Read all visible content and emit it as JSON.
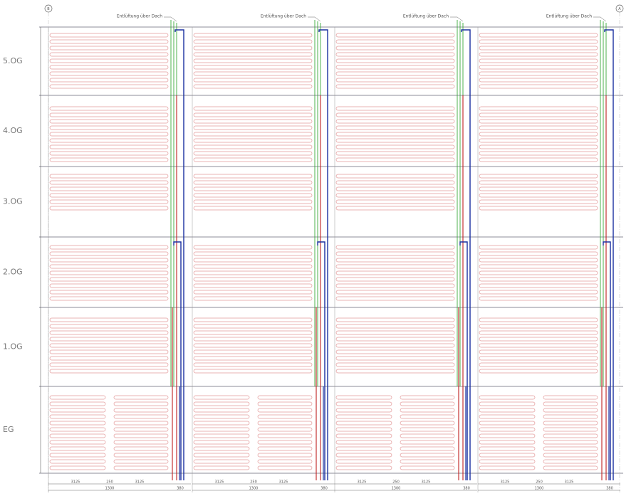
{
  "grid_markers": [
    "B",
    "A"
  ],
  "floors": [
    "5.OG",
    "4.OG",
    "3.OG",
    "2.OG",
    "1.OG",
    "EG"
  ],
  "columns": [
    {
      "vent": "Entlüftung über Dach",
      "dims": [
        "3125",
        "250",
        "3125",
        "1300",
        "380"
      ]
    },
    {
      "vent": "Entlüftung über Dach",
      "dims": [
        "3125",
        "250",
        "3125",
        "1300",
        "380"
      ]
    },
    {
      "vent": "Entlüftung über Dach",
      "dims": [
        "3125",
        "250",
        "3125",
        "1300",
        "380"
      ]
    },
    {
      "vent": "Entlüftung über Dach",
      "dims": [
        "3125",
        "250",
        "3125",
        "1300",
        "380"
      ]
    }
  ]
}
